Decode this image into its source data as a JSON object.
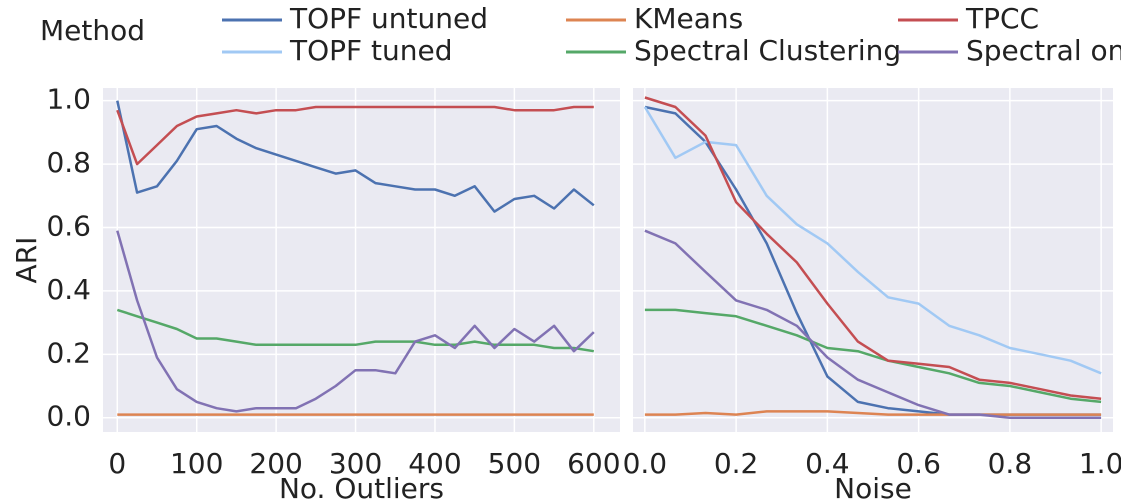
{
  "chart_data": [
    {
      "type": "line",
      "xlabel": "No. Outliers",
      "ylabel": "ARI",
      "x": [
        0,
        25,
        50,
        75,
        100,
        125,
        150,
        175,
        200,
        225,
        250,
        275,
        300,
        325,
        350,
        375,
        400,
        425,
        450,
        475,
        500,
        525,
        550,
        575,
        600
      ],
      "xlim": [
        -18,
        633
      ],
      "xticks": [
        0,
        100,
        200,
        300,
        400,
        500,
        600
      ],
      "ylim": [
        -0.045,
        1.04
      ],
      "yticks": [
        {
          "value": 0,
          "label": "0.0"
        },
        0.2,
        0.4,
        0.6,
        0.8,
        {
          "value": 1,
          "label": "1.0"
        }
      ],
      "grid": true,
      "series": [
        {
          "name": "TOPF untuned",
          "color": "#4c72b0",
          "values": [
            1.0,
            0.71,
            0.73,
            0.81,
            0.91,
            0.92,
            0.88,
            0.85,
            0.83,
            0.81,
            0.79,
            0.77,
            0.78,
            0.74,
            0.73,
            0.72,
            0.72,
            0.7,
            0.73,
            0.65,
            0.69,
            0.7,
            0.66,
            0.72,
            0.67
          ]
        },
        {
          "name": "KMeans",
          "color": "#dd8452",
          "values": [
            0.01,
            0.01,
            0.01,
            0.01,
            0.01,
            0.01,
            0.01,
            0.01,
            0.01,
            0.01,
            0.01,
            0.01,
            0.01,
            0.01,
            0.01,
            0.01,
            0.01,
            0.01,
            0.01,
            0.01,
            0.01,
            0.01,
            0.01,
            0.01,
            0.01
          ]
        },
        {
          "name": "Spectral Clustering",
          "color": "#55a868",
          "values": [
            0.34,
            0.32,
            0.3,
            0.28,
            0.25,
            0.25,
            0.24,
            0.23,
            0.23,
            0.23,
            0.23,
            0.23,
            0.23,
            0.24,
            0.24,
            0.24,
            0.23,
            0.23,
            0.24,
            0.23,
            0.23,
            0.23,
            0.22,
            0.22,
            0.21
          ]
        },
        {
          "name": "TPCC",
          "color": "#c44e52",
          "values": [
            0.97,
            0.8,
            0.86,
            0.92,
            0.95,
            0.96,
            0.97,
            0.96,
            0.97,
            0.97,
            0.98,
            0.98,
            0.98,
            0.98,
            0.98,
            0.98,
            0.98,
            0.98,
            0.98,
            0.98,
            0.97,
            0.97,
            0.97,
            0.98,
            0.98
          ]
        },
        {
          "name": "Spectral on SC",
          "color": "#8172b3",
          "values": [
            0.59,
            0.37,
            0.19,
            0.09,
            0.05,
            0.03,
            0.02,
            0.03,
            0.03,
            0.03,
            0.06,
            0.1,
            0.15,
            0.15,
            0.14,
            0.24,
            0.26,
            0.22,
            0.29,
            0.22,
            0.28,
            0.24,
            0.29,
            0.21,
            0.27
          ]
        }
      ]
    },
    {
      "type": "line",
      "xlabel": "Noise",
      "legend_title": "Method",
      "x": [
        0,
        0.067,
        0.133,
        0.2,
        0.267,
        0.333,
        0.4,
        0.467,
        0.533,
        0.6,
        0.667,
        0.733,
        0.8,
        0.867,
        0.933,
        1.0
      ],
      "xlim": [
        -0.026,
        1.026
      ],
      "xticks": [
        {
          "value": 0,
          "label": "0.0"
        },
        0.2,
        0.4,
        0.6,
        0.8,
        {
          "value": 1,
          "label": "1.0"
        }
      ],
      "ylim": [
        -0.045,
        1.04
      ],
      "yticks": [
        0,
        0.2,
        0.4,
        0.6,
        0.8,
        1
      ],
      "show_ytick_labels": false,
      "grid": true,
      "series": [
        {
          "name": "TOPF untuned",
          "color": "#4c72b0",
          "values": [
            0.98,
            0.96,
            0.87,
            0.72,
            0.55,
            0.33,
            0.13,
            0.05,
            0.03,
            0.02,
            0.01,
            0.01,
            0.01,
            0.01,
            0.01,
            0.01
          ]
        },
        {
          "name": "TOPF tuned",
          "color": "#a1c9f4",
          "values": [
            0.98,
            0.82,
            0.87,
            0.86,
            0.7,
            0.61,
            0.55,
            0.46,
            0.38,
            0.36,
            0.29,
            0.26,
            0.22,
            0.2,
            0.18,
            0.14
          ]
        },
        {
          "name": "KMeans",
          "color": "#dd8452",
          "values": [
            0.01,
            0.01,
            0.015,
            0.01,
            0.02,
            0.02,
            0.02,
            0.015,
            0.01,
            0.01,
            0.01,
            0.01,
            0.01,
            0.01,
            0.01,
            0.01
          ]
        },
        {
          "name": "Spectral Clustering",
          "color": "#55a868",
          "values": [
            0.34,
            0.34,
            0.33,
            0.32,
            0.29,
            0.26,
            0.22,
            0.21,
            0.18,
            0.16,
            0.14,
            0.11,
            0.1,
            0.08,
            0.06,
            0.05
          ]
        },
        {
          "name": "TPCC",
          "color": "#c44e52",
          "values": [
            1.01,
            0.98,
            0.89,
            0.68,
            0.58,
            0.49,
            0.36,
            0.24,
            0.18,
            0.17,
            0.16,
            0.12,
            0.11,
            0.09,
            0.07,
            0.06
          ]
        },
        {
          "name": "Spectral on SC",
          "color": "#8172b3",
          "values": [
            0.59,
            0.55,
            0.46,
            0.37,
            0.34,
            0.29,
            0.19,
            0.12,
            0.08,
            0.04,
            0.01,
            0.01,
            0.0,
            0.0,
            0.0,
            0.0
          ]
        }
      ]
    }
  ]
}
